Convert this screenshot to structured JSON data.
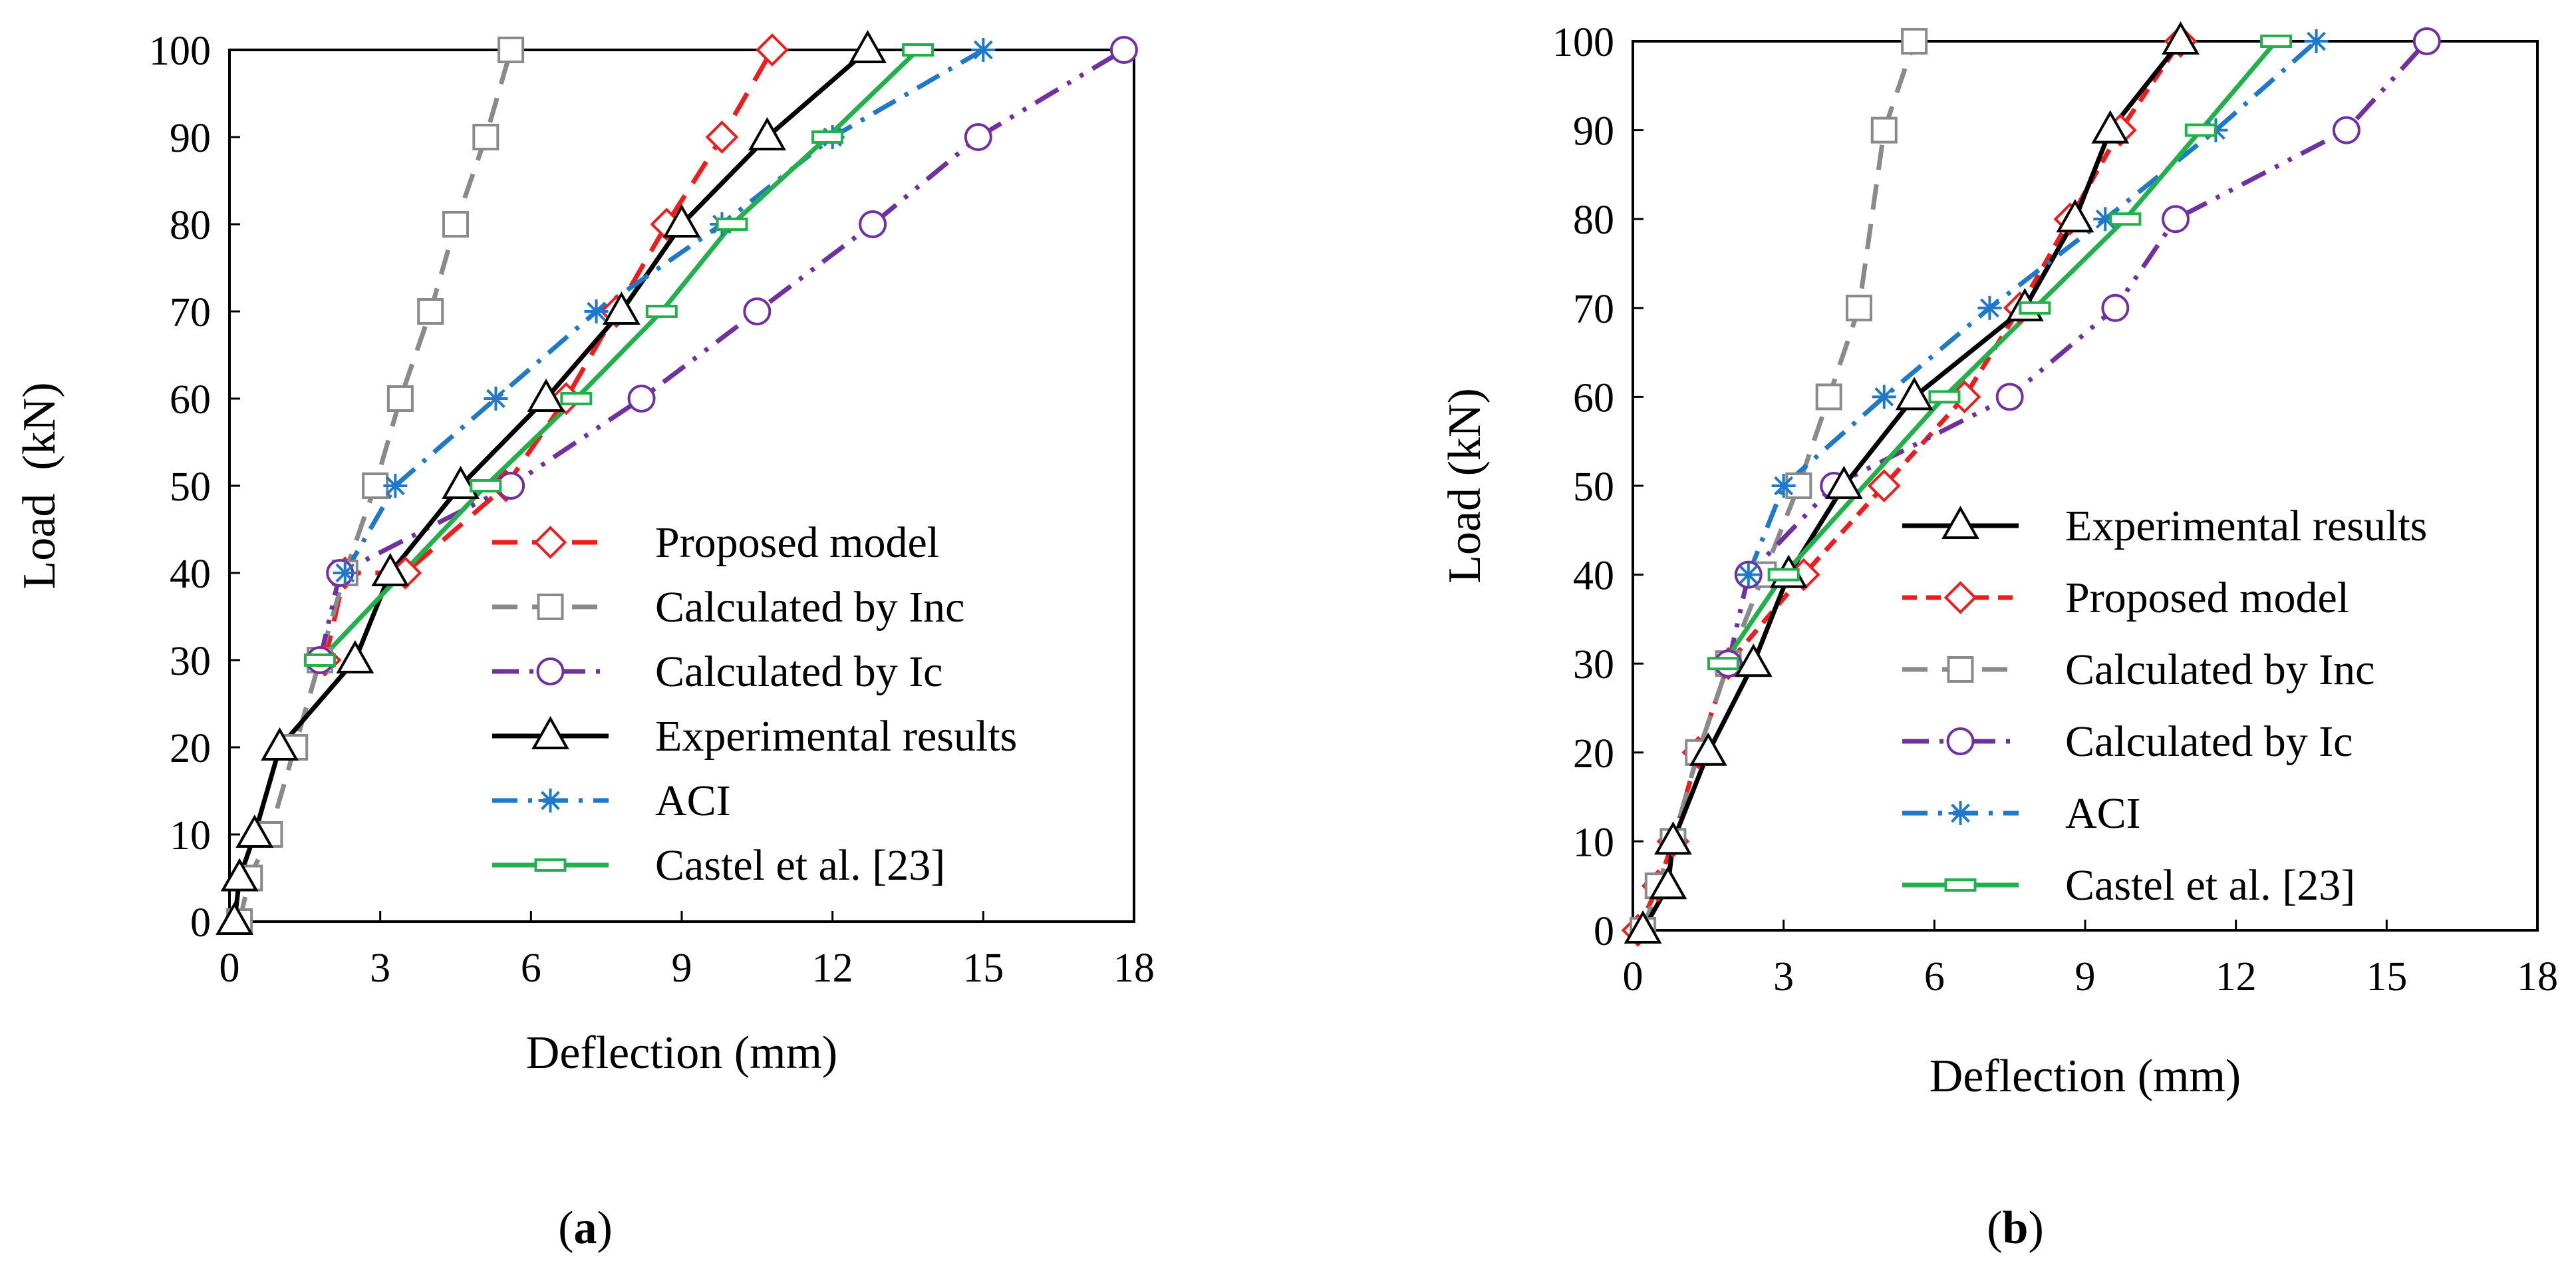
{
  "chart_data": [
    {
      "type": "line",
      "panel_label": "a",
      "xlabel": "Deflection (mm)",
      "ylabel": "Load  (kN)",
      "xlim": [
        0,
        18
      ],
      "ylim": [
        0,
        100
      ],
      "xticks": [
        0,
        3,
        6,
        9,
        12,
        15,
        18
      ],
      "yticks": [
        0,
        10,
        20,
        30,
        40,
        50,
        60,
        70,
        80,
        90,
        100
      ],
      "legend_position": "bottom-right",
      "legend_order": [
        "Proposed model",
        "Calculated by Inc",
        "Calculated by Ic",
        "Experimental results",
        "ACI",
        "Castel et al. [23]"
      ],
      "series": [
        {
          "name": "Proposed model",
          "color": "#ee1c1c",
          "dash": "long-dash",
          "marker": "diamond",
          "x": [
            1.9,
            2.3,
            3.5,
            5.5,
            6.7,
            7.7,
            8.7,
            9.8,
            10.8
          ],
          "y": [
            30,
            40,
            40,
            50,
            60,
            70,
            80,
            90,
            100
          ]
        },
        {
          "name": "Calculated by Inc",
          "color": "#8a8a8a",
          "dash": "long-dash",
          "marker": "square",
          "x": [
            0.2,
            0.4,
            0.8,
            1.3,
            1.8,
            2.3,
            2.9,
            3.4,
            4.0,
            4.5,
            5.1,
            5.6
          ],
          "y": [
            0,
            5,
            10,
            20,
            30,
            40,
            50,
            60,
            70,
            80,
            90,
            100
          ]
        },
        {
          "name": "Calculated by Ic",
          "color": "#7030a0",
          "dash": "long-dash-dot-dot",
          "marker": "circle",
          "x": [
            1.8,
            2.2,
            5.6,
            8.2,
            10.5,
            12.8,
            14.9,
            17.8
          ],
          "y": [
            30,
            40,
            50,
            60,
            70,
            80,
            90,
            100
          ]
        },
        {
          "name": "Experimental results",
          "color": "#000000",
          "dash": "solid",
          "marker": "triangle",
          "x": [
            0.1,
            0.2,
            0.5,
            1.0,
            2.5,
            3.2,
            4.6,
            6.3,
            7.8,
            9.0,
            10.7,
            12.7
          ],
          "y": [
            0,
            5,
            10,
            20,
            30,
            40,
            50,
            60,
            70,
            80,
            90,
            100
          ]
        },
        {
          "name": "ACI",
          "color": "#1f78c8",
          "dash": "dash-dot",
          "marker": "star",
          "x": [
            2.3,
            3.3,
            5.3,
            7.3,
            9.8,
            12.0,
            15.0
          ],
          "y": [
            40,
            50,
            60,
            70,
            80,
            90,
            100
          ]
        },
        {
          "name": "Castel et al. [23]",
          "color": "#22b04a",
          "dash": "solid",
          "marker": "bar",
          "x": [
            1.8,
            5.1,
            6.9,
            8.6,
            10.0,
            11.9,
            13.7
          ],
          "y": [
            30,
            50,
            60,
            70,
            80,
            90,
            100
          ]
        }
      ]
    },
    {
      "type": "line",
      "panel_label": "b",
      "xlabel": "Deflection (mm)",
      "ylabel": "Load (kN)",
      "xlim": [
        0,
        18
      ],
      "ylim": [
        0,
        100
      ],
      "xticks": [
        0,
        3,
        6,
        9,
        12,
        15,
        18
      ],
      "yticks": [
        0,
        10,
        20,
        30,
        40,
        50,
        60,
        70,
        80,
        90,
        100
      ],
      "legend_position": "bottom-right",
      "legend_order": [
        "Experimental results",
        "Proposed model",
        "Calculated by Inc",
        "Calculated by Ic",
        "ACI",
        "Castel et al. [23]"
      ],
      "series": [
        {
          "name": "Proposed model",
          "color": "#ee1c1c",
          "dash": "short-dash",
          "marker": "diamond",
          "x": [
            0.1,
            0.5,
            0.8,
            1.3,
            1.9,
            3.4,
            5.0,
            6.6,
            7.7,
            8.7,
            9.7,
            10.9
          ],
          "y": [
            0,
            5,
            10,
            20,
            30,
            40,
            50,
            60,
            70,
            80,
            90,
            100
          ]
        },
        {
          "name": "Calculated by Inc",
          "color": "#8a8a8a",
          "dash": "long-dash",
          "marker": "square",
          "x": [
            0.2,
            0.5,
            0.8,
            1.3,
            1.9,
            2.6,
            3.3,
            3.9,
            4.5,
            5.0,
            5.6
          ],
          "y": [
            0,
            5,
            10,
            20,
            30,
            40,
            50,
            60,
            70,
            90,
            100
          ]
        },
        {
          "name": "Calculated by Ic",
          "color": "#7030a0",
          "dash": "long-dash-dot-dot",
          "marker": "circle",
          "x": [
            1.9,
            2.3,
            4.0,
            7.5,
            9.6,
            10.8,
            14.2,
            15.8
          ],
          "y": [
            30,
            40,
            50,
            60,
            70,
            80,
            90,
            100
          ]
        },
        {
          "name": "Experimental results",
          "color": "#000000",
          "dash": "solid",
          "marker": "triangle",
          "x": [
            0.2,
            0.7,
            0.8,
            1.5,
            2.4,
            3.1,
            4.2,
            5.6,
            7.8,
            8.8,
            9.5,
            10.9
          ],
          "y": [
            0,
            5,
            10,
            20,
            30,
            40,
            50,
            60,
            70,
            80,
            90,
            100
          ]
        },
        {
          "name": "ACI",
          "color": "#1f78c8",
          "dash": "dash-dot",
          "marker": "star",
          "x": [
            2.3,
            3.0,
            5.0,
            7.1,
            9.4,
            11.6,
            13.6
          ],
          "y": [
            40,
            50,
            60,
            70,
            80,
            90,
            100
          ]
        },
        {
          "name": "Castel et al. [23]",
          "color": "#22b04a",
          "dash": "solid",
          "marker": "bar",
          "x": [
            1.8,
            3.0,
            6.2,
            8.0,
            9.8,
            11.3,
            12.8
          ],
          "y": [
            30,
            40,
            60,
            70,
            80,
            90,
            100
          ]
        }
      ]
    }
  ]
}
